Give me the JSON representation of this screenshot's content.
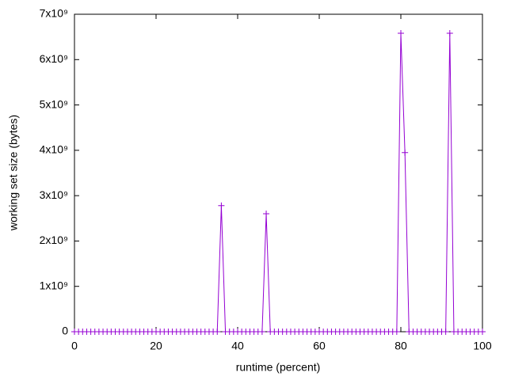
{
  "chart_data": {
    "type": "line",
    "x_label": "runtime (percent)",
    "y_label": "working set size (bytes)",
    "x": [
      0,
      1,
      2,
      3,
      4,
      5,
      6,
      7,
      8,
      9,
      10,
      11,
      12,
      13,
      14,
      15,
      16,
      17,
      18,
      19,
      20,
      21,
      22,
      23,
      24,
      25,
      26,
      27,
      28,
      29,
      30,
      31,
      32,
      33,
      34,
      35,
      36,
      37,
      38,
      39,
      40,
      41,
      42,
      43,
      44,
      45,
      46,
      47,
      48,
      49,
      50,
      51,
      52,
      53,
      54,
      55,
      56,
      57,
      58,
      59,
      60,
      61,
      62,
      63,
      64,
      65,
      66,
      67,
      68,
      69,
      70,
      71,
      72,
      73,
      74,
      75,
      76,
      77,
      78,
      79,
      80,
      81,
      82,
      83,
      84,
      85,
      86,
      87,
      88,
      89,
      90,
      91,
      92,
      93,
      94,
      95,
      96,
      97,
      98,
      99,
      100
    ],
    "series": [
      {
        "color": "#9400d3",
        "values": [
          0,
          0,
          0,
          0,
          0,
          0,
          0,
          0,
          0,
          0,
          0,
          0,
          0,
          0,
          0,
          0,
          0,
          0,
          0,
          0,
          0,
          0,
          0,
          0,
          0,
          0,
          0,
          0,
          0,
          0,
          0,
          0,
          0,
          0,
          0,
          0,
          2780000000,
          0,
          0,
          0,
          0,
          0,
          0,
          0,
          0,
          0,
          0,
          2600000000,
          0,
          0,
          0,
          0,
          0,
          0,
          0,
          0,
          0,
          0,
          0,
          0,
          0,
          0,
          0,
          0,
          0,
          0,
          0,
          0,
          0,
          0,
          0,
          0,
          0,
          0,
          0,
          0,
          0,
          0,
          0,
          0,
          6580000000,
          3950000000,
          0,
          0,
          0,
          0,
          0,
          0,
          0,
          0,
          0,
          0,
          6580000000,
          0,
          0,
          0,
          0,
          0,
          0,
          0,
          0
        ]
      }
    ],
    "xlim": [
      0,
      100
    ],
    "xticks": [
      0,
      20,
      40,
      60,
      80,
      100
    ],
    "ylim": [
      0,
      7000000000
    ],
    "yticks": [
      0,
      {
        "value": 1000000000,
        "label": "1x10⁹"
      },
      {
        "value": 2000000000,
        "label": "2x10⁹"
      },
      {
        "value": 3000000000,
        "label": "3x10⁹"
      },
      {
        "value": 4000000000,
        "label": "4x10⁹"
      },
      {
        "value": 5000000000,
        "label": "5x10⁹"
      },
      {
        "value": 6000000000,
        "label": "6x10⁹"
      },
      {
        "value": 7000000000,
        "label": "7x10⁹"
      }
    ],
    "grid": false
  }
}
